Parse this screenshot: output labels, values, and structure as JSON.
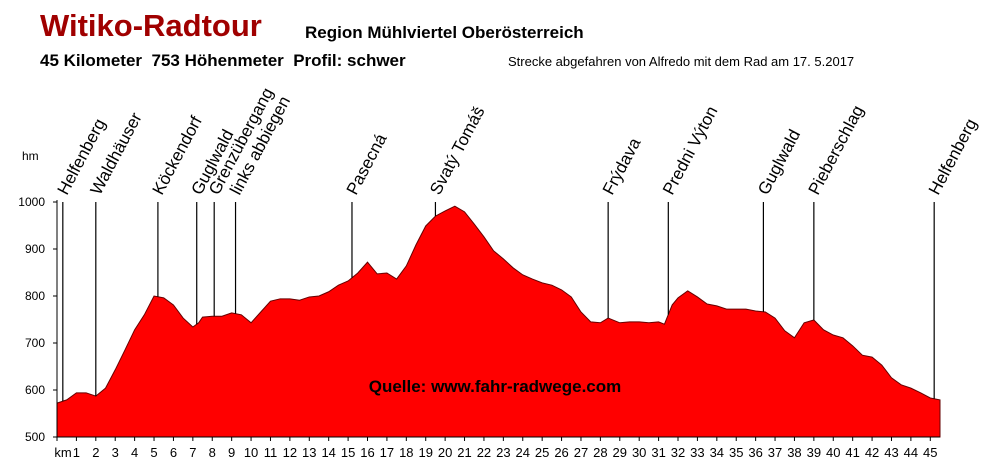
{
  "chart_data": {
    "type": "area",
    "title": "Witiko-Radtour",
    "subtitle": "Region Mühlviertel Oberösterreich",
    "stats": "45 Kilometer  753 Höhenmeter  Profil: schwer",
    "note": "Strecke abgefahren von Alfredo mit dem Rad am 17. 5.2017",
    "y_label": "hm",
    "source": "Quelle: www.fahr-radwege.com",
    "color": "#ff0000",
    "x": [
      0,
      0.5,
      1,
      1.5,
      2,
      2.5,
      3,
      3.5,
      4,
      4.5,
      5,
      5.5,
      6,
      6.5,
      7,
      7.3,
      7.5,
      8,
      8.5,
      9,
      9.5,
      10,
      10.5,
      11,
      11.5,
      12,
      12.5,
      13,
      13.5,
      14,
      14.5,
      15,
      15.5,
      16,
      16.5,
      17,
      17.5,
      18,
      18.5,
      19,
      19.5,
      20,
      20.5,
      21,
      21.5,
      22,
      22.5,
      23,
      23.5,
      24,
      24.5,
      25,
      25.5,
      26,
      26.5,
      27,
      27.5,
      28,
      28.4,
      29,
      29.5,
      30,
      30.5,
      31,
      31.3,
      31.7,
      32,
      32.5,
      33,
      33.5,
      34,
      34.5,
      35,
      35.5,
      36,
      36.5,
      37,
      37.5,
      38,
      38.5,
      39,
      39.5,
      40,
      40.5,
      41,
      41.5,
      42,
      42.5,
      43,
      43.5,
      44,
      44.5,
      45,
      45.5
    ],
    "values": [
      572,
      579,
      594,
      594,
      587,
      604,
      643,
      685,
      728,
      760,
      800,
      796,
      781,
      753,
      734,
      743,
      755,
      757,
      757,
      764,
      760,
      743,
      766,
      789,
      794,
      794,
      791,
      798,
      800,
      809,
      823,
      832,
      849,
      872,
      847,
      849,
      836,
      864,
      909,
      949,
      970,
      981,
      991,
      979,
      953,
      926,
      896,
      879,
      860,
      845,
      836,
      828,
      823,
      813,
      798,
      766,
      745,
      743,
      753,
      743,
      745,
      745,
      743,
      745,
      740,
      781,
      796,
      811,
      798,
      783,
      779,
      772,
      772,
      772,
      768,
      766,
      753,
      726,
      711,
      743,
      749,
      728,
      717,
      711,
      694,
      674,
      670,
      653,
      626,
      611,
      604,
      594,
      583,
      579
    ],
    "xlim": [
      0,
      45.5
    ],
    "ylim": [
      500,
      1000
    ],
    "xticks": [
      {
        "value": 0,
        "label": "km"
      },
      1,
      2,
      3,
      4,
      5,
      6,
      7,
      8,
      9,
      10,
      11,
      12,
      13,
      14,
      15,
      16,
      17,
      18,
      19,
      20,
      21,
      22,
      23,
      24,
      25,
      26,
      27,
      28,
      29,
      30,
      31,
      32,
      33,
      34,
      35,
      36,
      37,
      38,
      39,
      40,
      41,
      42,
      43,
      44,
      45
    ],
    "yticks": [
      500,
      600,
      700,
      800,
      900,
      1000
    ],
    "markers": [
      {
        "label": "Helfenberg",
        "km": 0.3
      },
      {
        "label": "Waldhäuser",
        "km": 2
      },
      {
        "label": "Köckendorf",
        "km": 5.2
      },
      {
        "label": "Guglwald",
        "km": 7.2
      },
      {
        "label": "Grenzübergang",
        "km": 8.1
      },
      {
        "label": "links abbiegen",
        "km": 9.2
      },
      {
        "label": "Pasecná",
        "km": 15.2
      },
      {
        "label": "Svatý Tomáš",
        "km": 19.5
      },
      {
        "label": "Frýdava",
        "km": 28.4
      },
      {
        "label": "Predni Výton",
        "km": 31.5
      },
      {
        "label": "Guglwald",
        "km": 36.4
      },
      {
        "label": "Pieberschlag",
        "km": 39
      },
      {
        "label": "Helfenberg",
        "km": 45.2
      }
    ]
  }
}
